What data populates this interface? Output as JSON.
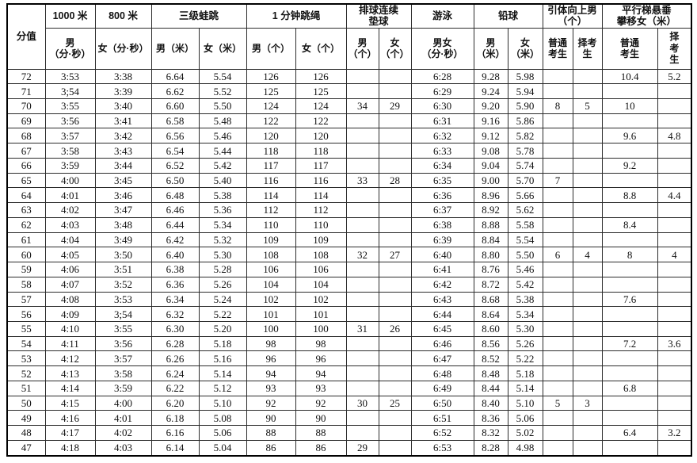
{
  "colors": {
    "background": "#ffffff",
    "grid_line": "#2c2c2c",
    "outer_border": "#000000",
    "text": "#111111"
  },
  "table": {
    "corner_label": "分值",
    "groups": [
      {
        "label": "1000 米"
      },
      {
        "label": "800 米"
      },
      {
        "label": "三级蛙跳"
      },
      {
        "label": "1 分钟跳绳"
      },
      {
        "label": "排球连续\n垫球"
      },
      {
        "label": "游泳"
      },
      {
        "label": "铅球"
      },
      {
        "label": "引体向上男\n（个）"
      },
      {
        "label": "平行梯悬垂\n攀移女（米）"
      }
    ],
    "subheaders": [
      {
        "label": "男\n（分·秒）"
      },
      {
        "label": "女（分·秒）"
      },
      {
        "label": "男（米）"
      },
      {
        "label": "女（米）"
      },
      {
        "label": "男（个）"
      },
      {
        "label": "女（个）"
      },
      {
        "label": "男\n（个）"
      },
      {
        "label": "女\n（个）"
      },
      {
        "label": "男女\n（分·秒）"
      },
      {
        "label": "男\n（米）"
      },
      {
        "label": "女\n（米）"
      },
      {
        "label": "普通\n考生"
      },
      {
        "label": "择考\n生"
      },
      {
        "label": "普通\n考生"
      },
      {
        "label": "择\n考\n生"
      }
    ],
    "rows": [
      [
        "72",
        "3:53",
        "3:38",
        "6.64",
        "5.54",
        "126",
        "126",
        "",
        "",
        "6:28",
        "9.28",
        "5.98",
        "",
        "",
        "10.4",
        "5.2"
      ],
      [
        "71",
        "3;54",
        "3:39",
        "6.62",
        "5.52",
        "125",
        "125",
        "",
        "",
        "6:29",
        "9.24",
        "5.94",
        "",
        "",
        "",
        ""
      ],
      [
        "70",
        "3:55",
        "3:40",
        "6.60",
        "5.50",
        "124",
        "124",
        "34",
        "29",
        "6:30",
        "9.20",
        "5.90",
        "8",
        "5",
        "10",
        ""
      ],
      [
        "69",
        "3:56",
        "3:41",
        "6.58",
        "5.48",
        "122",
        "122",
        "",
        "",
        "6:31",
        "9.16",
        "5.86",
        "",
        "",
        "",
        ""
      ],
      [
        "68",
        "3:57",
        "3:42",
        "6.56",
        "5.46",
        "120",
        "120",
        "",
        "",
        "6:32",
        "9.12",
        "5.82",
        "",
        "",
        "9.6",
        "4.8"
      ],
      [
        "67",
        "3:58",
        "3:43",
        "6.54",
        "5.44",
        "118",
        "118",
        "",
        "",
        "6:33",
        "9.08",
        "5.78",
        "",
        "",
        "",
        ""
      ],
      [
        "66",
        "3:59",
        "3:44",
        "6.52",
        "5.42",
        "117",
        "117",
        "",
        "",
        "6:34",
        "9.04",
        "5.74",
        "",
        "",
        "9.2",
        ""
      ],
      [
        "65",
        "4:00",
        "3:45",
        "6.50",
        "5.40",
        "116",
        "116",
        "33",
        "28",
        "6:35",
        "9.00",
        "5.70",
        "7",
        "",
        "",
        ""
      ],
      [
        "64",
        "4:01",
        "3:46",
        "6.48",
        "5.38",
        "114",
        "114",
        "",
        "",
        "6:36",
        "8.96",
        "5.66",
        "",
        "",
        "8.8",
        "4.4"
      ],
      [
        "63",
        "4:02",
        "3:47",
        "6.46",
        "5.36",
        "112",
        "112",
        "",
        "",
        "6:37",
        "8.92",
        "5.62",
        "",
        "",
        "",
        ""
      ],
      [
        "62",
        "4:03",
        "3:48",
        "6.44",
        "5.34",
        "110",
        "110",
        "",
        "",
        "6:38",
        "8.88",
        "5.58",
        "",
        "",
        "8.4",
        ""
      ],
      [
        "61",
        "4:04",
        "3:49",
        "6.42",
        "5.32",
        "109",
        "109",
        "",
        "",
        "6:39",
        "8.84",
        "5.54",
        "",
        "",
        "",
        ""
      ],
      [
        "60",
        "4:05",
        "3:50",
        "6.40",
        "5.30",
        "108",
        "108",
        "32",
        "27",
        "6:40",
        "8.80",
        "5.50",
        "6",
        "4",
        "8",
        "4"
      ],
      [
        "59",
        "4:06",
        "3:51",
        "6.38",
        "5.28",
        "106",
        "106",
        "",
        "",
        "6:41",
        "8.76",
        "5.46",
        "",
        "",
        "",
        ""
      ],
      [
        "58",
        "4:07",
        "3:52",
        "6.36",
        "5.26",
        "104",
        "104",
        "",
        "",
        "6:42",
        "8.72",
        "5.42",
        "",
        "",
        "",
        ""
      ],
      [
        "57",
        "4:08",
        "3:53",
        "6.34",
        "5.24",
        "102",
        "102",
        "",
        "",
        "6:43",
        "8.68",
        "5.38",
        "",
        "",
        "7.6",
        ""
      ],
      [
        "56",
        "4:09",
        "3;54",
        "6.32",
        "5.22",
        "101",
        "101",
        "",
        "",
        "6:44",
        "8.64",
        "5.34",
        "",
        "",
        "",
        ""
      ],
      [
        "55",
        "4:10",
        "3:55",
        "6.30",
        "5.20",
        "100",
        "100",
        "31",
        "26",
        "6:45",
        "8.60",
        "5.30",
        "",
        "",
        "",
        ""
      ],
      [
        "54",
        "4:11",
        "3:56",
        "6.28",
        "5.18",
        "98",
        "98",
        "",
        "",
        "6:46",
        "8.56",
        "5.26",
        "",
        "",
        "7.2",
        "3.6"
      ],
      [
        "53",
        "4:12",
        "3:57",
        "6.26",
        "5.16",
        "96",
        "96",
        "",
        "",
        "6:47",
        "8.52",
        "5.22",
        "",
        "",
        "",
        ""
      ],
      [
        "52",
        "4:13",
        "3:58",
        "6.24",
        "5.14",
        "94",
        "94",
        "",
        "",
        "6:48",
        "8.48",
        "5.18",
        "",
        "",
        "",
        ""
      ],
      [
        "51",
        "4:14",
        "3:59",
        "6.22",
        "5.12",
        "93",
        "93",
        "",
        "",
        "6:49",
        "8.44",
        "5.14",
        "",
        "",
        "6.8",
        ""
      ],
      [
        "50",
        "4:15",
        "4:00",
        "6.20",
        "5.10",
        "92",
        "92",
        "30",
        "25",
        "6:50",
        "8.40",
        "5.10",
        "5",
        "3",
        "",
        ""
      ],
      [
        "49",
        "4:16",
        "4:01",
        "6.18",
        "5.08",
        "90",
        "90",
        "",
        "",
        "6:51",
        "8.36",
        "5.06",
        "",
        "",
        "",
        ""
      ],
      [
        "48",
        "4:17",
        "4:02",
        "6.16",
        "5.06",
        "88",
        "88",
        "",
        "",
        "6:52",
        "8.32",
        "5.02",
        "",
        "",
        "6.4",
        "3.2"
      ],
      [
        "47",
        "4:18",
        "4:03",
        "6.14",
        "5.04",
        "86",
        "86",
        "29",
        "",
        "6:53",
        "8.28",
        "4.98",
        "",
        "",
        "",
        ""
      ]
    ]
  }
}
